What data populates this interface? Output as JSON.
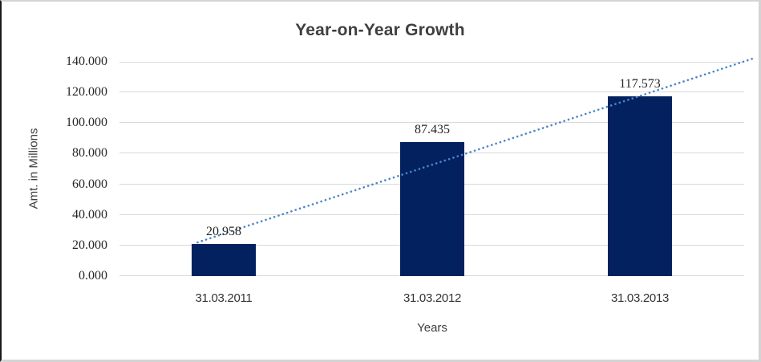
{
  "chart_data": {
    "type": "bar",
    "title": "Year-on-Year Growth",
    "categories": [
      "31.03.2011",
      "31.03.2012",
      "31.03.2013"
    ],
    "values": [
      20.958,
      87.435,
      117.573
    ],
    "data_labels": [
      "20.958",
      "87.435",
      "117.573"
    ],
    "xlabel": "Years",
    "ylabel": "Amt. in Millions",
    "ylim": [
      0,
      140
    ],
    "ytick_step": 20,
    "ytick_labels": [
      "0.000",
      "20.000",
      "40.000",
      "60.000",
      "80.000",
      "100.000",
      "120.000",
      "140.000"
    ],
    "grid": true,
    "legend": "none",
    "bar_color": "#03215F",
    "gridline_color": "#d9d9d9",
    "label_color": "#262626",
    "trendline": {
      "type": "linear",
      "style": "dotted",
      "color": "#4a86c8",
      "start": {
        "x_frac": 0.125,
        "value": 22
      },
      "end": {
        "x_frac": 1.013,
        "value": 142
      }
    }
  }
}
